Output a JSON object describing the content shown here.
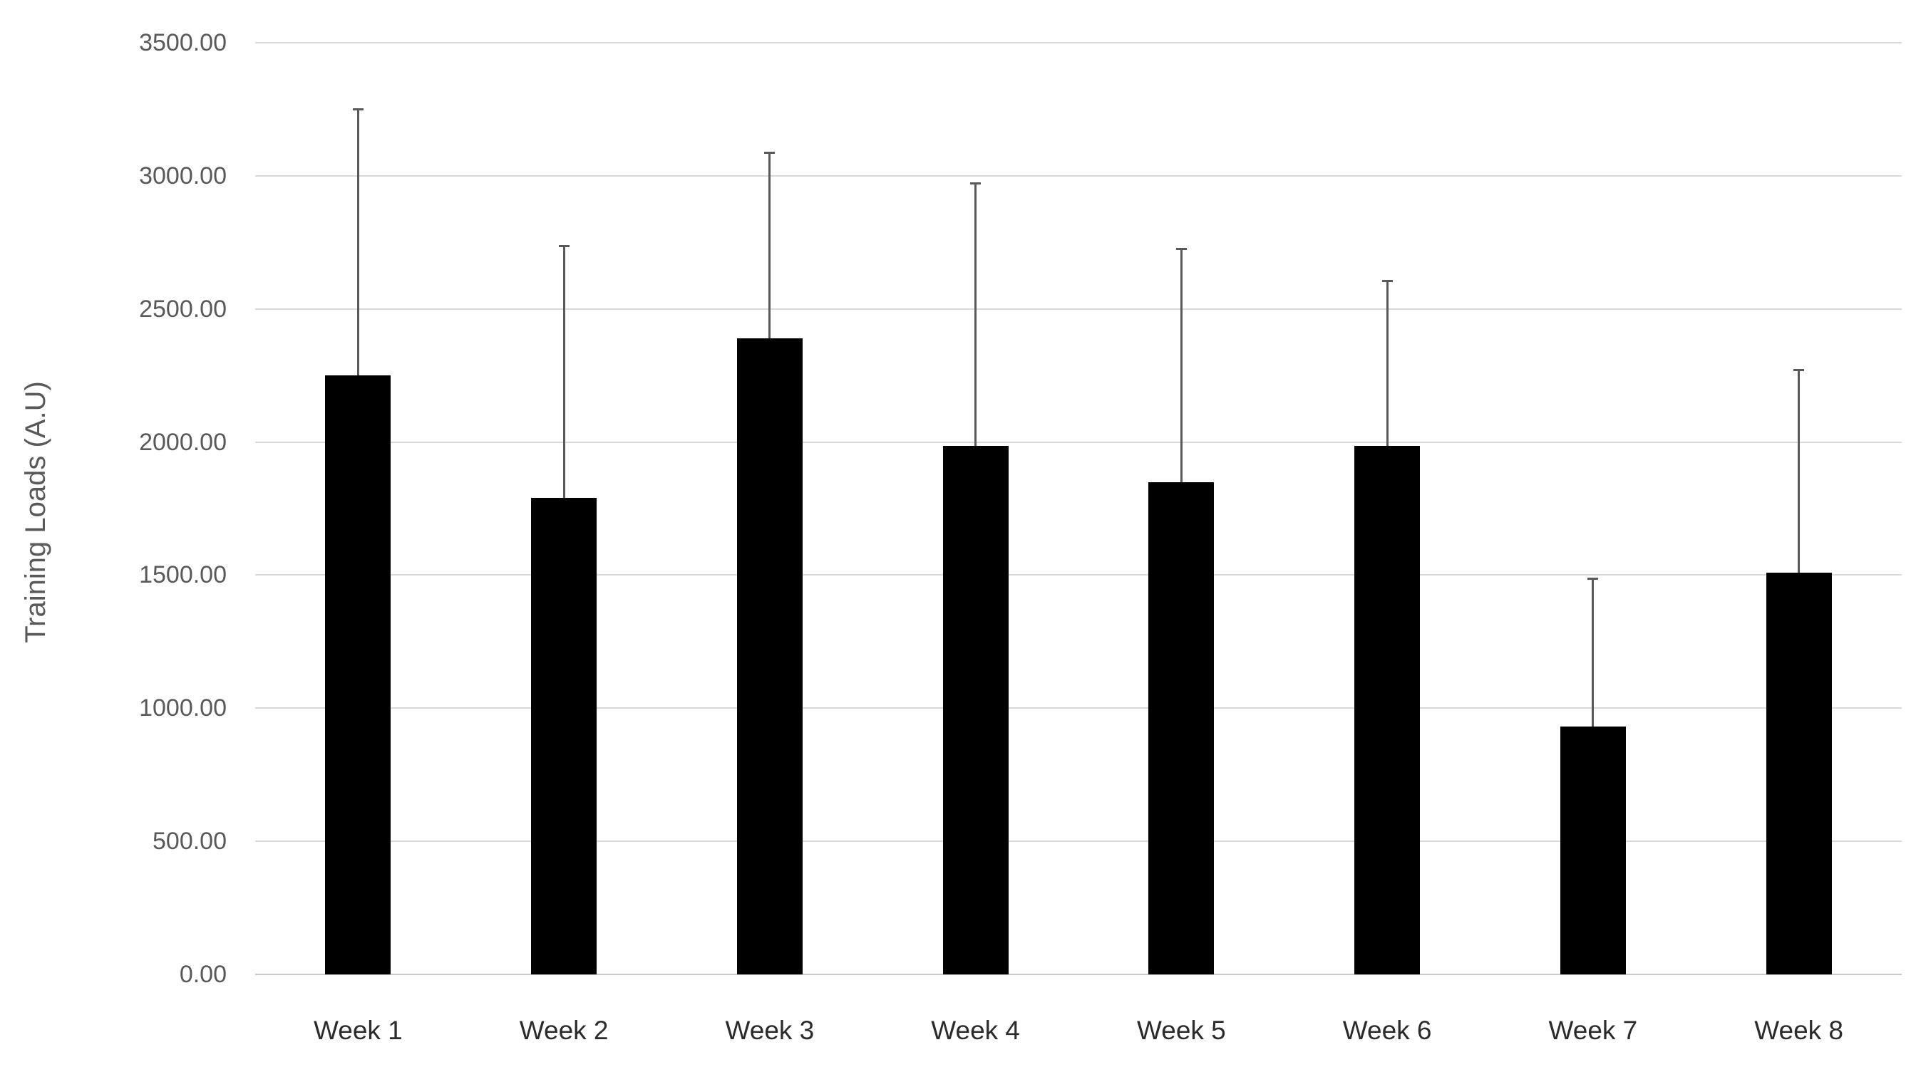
{
  "chart_data": {
    "type": "bar",
    "title": "",
    "xlabel": "",
    "ylabel": "Training Loads (A.U)",
    "categories": [
      "Week 1",
      "Week 2",
      "Week 3",
      "Week 4",
      "Week 5",
      "Week 6",
      "Week 7",
      "Week 8"
    ],
    "series": [
      {
        "name": "Training Loads",
        "values": [
          2250,
          1790,
          2390,
          1985,
          1850,
          1985,
          930,
          1510
        ],
        "error_bar_tops": [
          3255,
          2740,
          3090,
          2975,
          2730,
          2610,
          1490,
          2275
        ]
      }
    ],
    "ylim": [
      0,
      3500
    ],
    "y_tick_step": 500,
    "y_ticks": [
      {
        "value": 3500,
        "label": "3500.00"
      },
      {
        "value": 3000,
        "label": "3000.00"
      },
      {
        "value": 2500,
        "label": "2500.00"
      },
      {
        "value": 2000,
        "label": "2000.00"
      },
      {
        "value": 1500,
        "label": "1500.00"
      },
      {
        "value": 1000,
        "label": "1000.00"
      },
      {
        "value": 500,
        "label": "500.00"
      },
      {
        "value": 0,
        "label": "0.00"
      }
    ],
    "grid": "horizontal",
    "legend": "none",
    "bar_color": "#000000",
    "error_bar_color": "#595959",
    "gridline_color": "#d9d9d9",
    "background_color": "#ffffff"
  }
}
